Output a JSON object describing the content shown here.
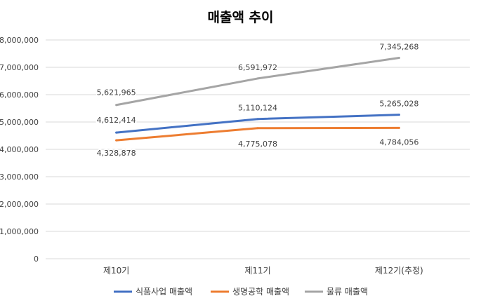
{
  "chart_data": {
    "type": "line",
    "title": "매출액 추이",
    "categories": [
      "제10기",
      "제11기",
      "제12기(추정)"
    ],
    "ylim": [
      0,
      8000000
    ],
    "yticks": [
      0,
      1000000,
      2000000,
      3000000,
      4000000,
      5000000,
      6000000,
      7000000,
      8000000
    ],
    "ytick_labels": [
      "0",
      "1,000,000",
      "2,000,000",
      "3,000,000",
      "4,000,000",
      "5,000,000",
      "6,000,000",
      "7,000,000",
      "8,000,000"
    ],
    "grid": true,
    "legend_position": "bottom",
    "series": [
      {
        "name": "식품사업 매출액",
        "color": "#4472C4",
        "values": [
          4612414,
          5110124,
          5265028
        ],
        "labels": [
          "4,612,414",
          "5,110,124",
          "5,265,028"
        ]
      },
      {
        "name": "생명공학 매출액",
        "color": "#ED7D31",
        "values": [
          4328878,
          4775078,
          4784056
        ],
        "labels": [
          "4,328,878",
          "4,775,078",
          "4,784,056"
        ]
      },
      {
        "name": "물류 매출액",
        "color": "#A5A5A5",
        "values": [
          5621965,
          6591972,
          7345268
        ],
        "labels": [
          "5,621,965",
          "6,591,972",
          "7,345,268"
        ]
      }
    ]
  }
}
